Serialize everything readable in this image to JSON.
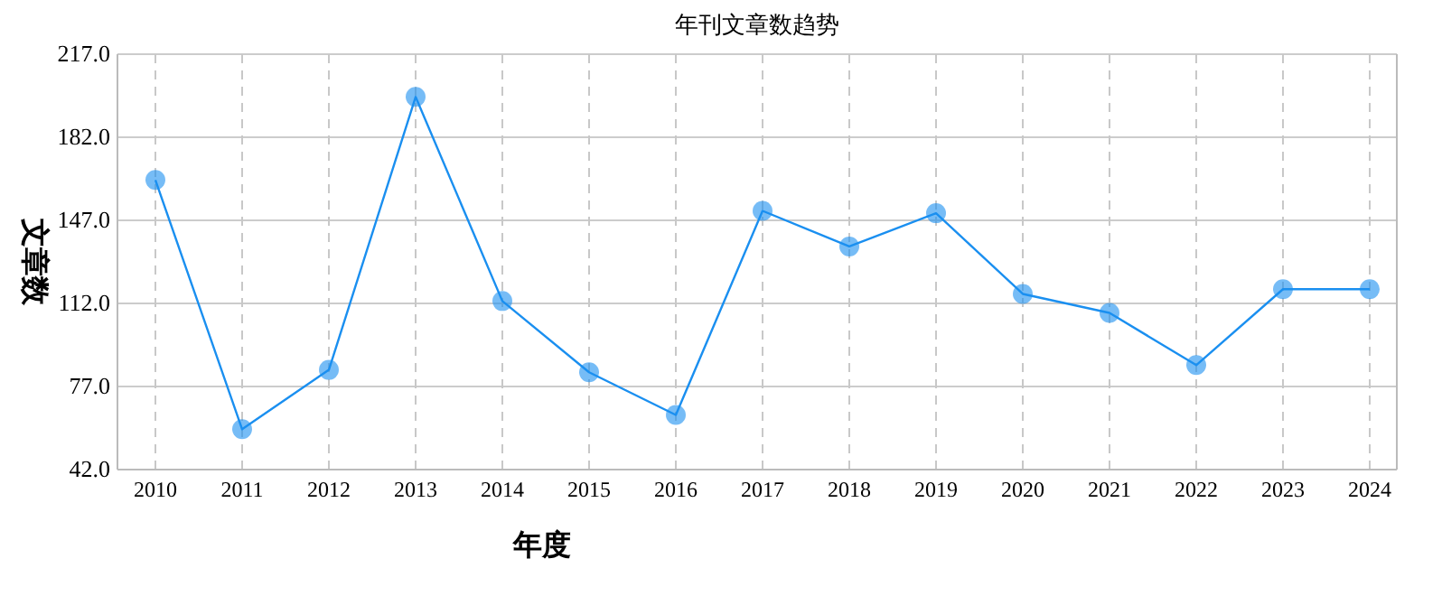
{
  "chart_data": {
    "type": "line",
    "title": "年刊文章数趋势",
    "xlabel": "年度",
    "ylabel": "文章数",
    "categories": [
      "2010",
      "2011",
      "2012",
      "2013",
      "2014",
      "2015",
      "2016",
      "2017",
      "2018",
      "2019",
      "2020",
      "2021",
      "2022",
      "2023",
      "2024"
    ],
    "series": [
      {
        "color": "#1a8ff0",
        "values": [
          164,
          59,
          84,
          199,
          113,
          83,
          65,
          151,
          136,
          150,
          116,
          108,
          86,
          118,
          118
        ]
      }
    ],
    "ylim": [
      42,
      217
    ],
    "yticks": [
      {
        "value": 42,
        "label": "42.0"
      },
      {
        "value": 77,
        "label": "77.0"
      },
      {
        "value": 112,
        "label": "112.0"
      },
      {
        "value": 147,
        "label": "147.0"
      },
      {
        "value": 182,
        "label": "182.0"
      },
      {
        "value": 217,
        "label": "217.0"
      }
    ],
    "grid": true,
    "marker": "circle"
  }
}
